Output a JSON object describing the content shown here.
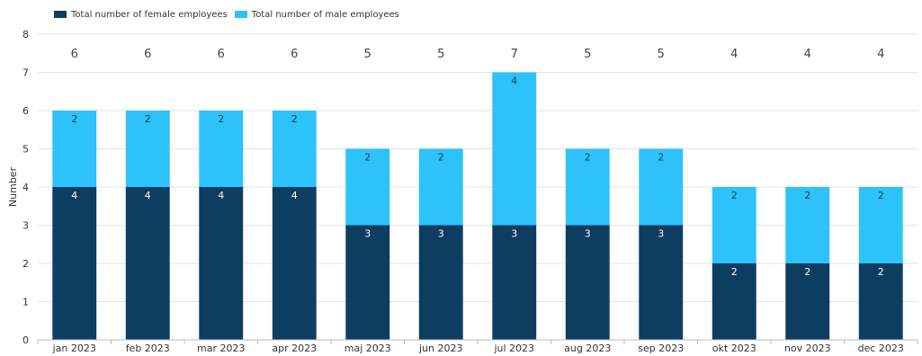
{
  "chart_data": {
    "type": "bar",
    "stacked": true,
    "title": "",
    "xlabel": "",
    "ylabel": "Number",
    "ylim": [
      0,
      8
    ],
    "yticks": [
      0,
      1,
      2,
      3,
      4,
      5,
      6,
      7,
      8
    ],
    "grid": true,
    "legend_position": "top-left",
    "categories": [
      "jan 2023",
      "feb 2023",
      "mar 2023",
      "apr 2023",
      "maj 2023",
      "jun 2023",
      "jul 2023",
      "aug 2023",
      "sep 2023",
      "okt 2023",
      "nov 2023",
      "dec 2023"
    ],
    "series": [
      {
        "name": "Total number of female employees",
        "color": "#0e3d62",
        "values": [
          4,
          4,
          4,
          4,
          3,
          3,
          3,
          3,
          3,
          2,
          2,
          2
        ]
      },
      {
        "name": "Total number of male employees",
        "color": "#2ec2fa",
        "values": [
          2,
          2,
          2,
          2,
          2,
          2,
          4,
          2,
          2,
          2,
          2,
          2
        ]
      }
    ],
    "totals": [
      6,
      6,
      6,
      6,
      5,
      5,
      7,
      5,
      5,
      4,
      4,
      4
    ]
  }
}
